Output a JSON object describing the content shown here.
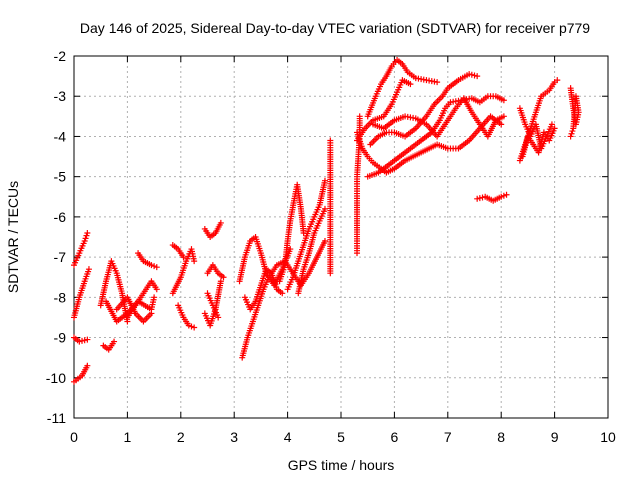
{
  "chart_data": {
    "type": "scatter",
    "title": "Day 146 of 2025, Sidereal Day-to-day VTEC variation (SDTVAR) for receiver p779",
    "xlabel": "GPS time / hours",
    "ylabel": "SDTVAR / TECUs",
    "xlim": [
      0,
      10
    ],
    "ylim": [
      -11,
      -2
    ],
    "xticks": [
      "0",
      "1",
      "2",
      "3",
      "4",
      "5",
      "6",
      "7",
      "8",
      "9",
      "10"
    ],
    "yticks": [
      "-11",
      "-10",
      "-9",
      "-8",
      "-7",
      "-6",
      "-5",
      "-4",
      "-3",
      "-2"
    ],
    "grid": true,
    "marker": "plus",
    "color": "#ff0000",
    "tracks": [
      [
        [
          0.0,
          -7.2
        ],
        [
          0.1,
          -6.9
        ],
        [
          0.2,
          -6.6
        ],
        [
          0.25,
          -6.4
        ]
      ],
      [
        [
          0.0,
          -8.5
        ],
        [
          0.1,
          -8.0
        ],
        [
          0.2,
          -7.6
        ],
        [
          0.28,
          -7.3
        ]
      ],
      [
        [
          0.0,
          -10.1
        ],
        [
          0.15,
          -9.95
        ],
        [
          0.25,
          -9.7
        ]
      ],
      [
        [
          0.0,
          -9.0
        ],
        [
          0.1,
          -9.1
        ],
        [
          0.25,
          -9.05
        ]
      ],
      [
        [
          0.5,
          -8.2
        ],
        [
          0.6,
          -7.6
        ],
        [
          0.7,
          -7.1
        ],
        [
          0.8,
          -7.4
        ],
        [
          0.9,
          -7.9
        ],
        [
          1.0,
          -8.6
        ]
      ],
      [
        [
          0.55,
          -9.2
        ],
        [
          0.65,
          -9.3
        ],
        [
          0.75,
          -9.1
        ]
      ],
      [
        [
          0.6,
          -8.1
        ],
        [
          0.8,
          -8.6
        ],
        [
          1.0,
          -8.4
        ],
        [
          1.2,
          -8.1
        ],
        [
          1.45,
          -8.3
        ],
        [
          1.5,
          -8.0
        ]
      ],
      [
        [
          0.8,
          -8.3
        ],
        [
          1.0,
          -8.0
        ],
        [
          1.15,
          -8.4
        ],
        [
          1.3,
          -8.6
        ],
        [
          1.45,
          -8.4
        ]
      ],
      [
        [
          1.0,
          -8.5
        ],
        [
          1.15,
          -8.2
        ],
        [
          1.3,
          -7.9
        ],
        [
          1.45,
          -7.6
        ],
        [
          1.55,
          -7.8
        ]
      ],
      [
        [
          1.2,
          -6.9
        ],
        [
          1.3,
          -7.1
        ],
        [
          1.45,
          -7.2
        ],
        [
          1.55,
          -7.25
        ]
      ],
      [
        [
          1.85,
          -6.7
        ],
        [
          1.95,
          -6.8
        ],
        [
          2.0,
          -6.9
        ],
        [
          2.05,
          -7.0
        ]
      ],
      [
        [
          1.85,
          -7.9
        ],
        [
          2.0,
          -7.5
        ],
        [
          2.1,
          -7.1
        ],
        [
          2.2,
          -6.8
        ],
        [
          2.25,
          -7.1
        ]
      ],
      [
        [
          1.95,
          -8.2
        ],
        [
          2.05,
          -8.5
        ],
        [
          2.15,
          -8.7
        ],
        [
          2.25,
          -8.75
        ]
      ],
      [
        [
          2.45,
          -6.3
        ],
        [
          2.55,
          -6.5
        ],
        [
          2.65,
          -6.4
        ],
        [
          2.75,
          -6.15
        ]
      ],
      [
        [
          2.5,
          -7.4
        ],
        [
          2.6,
          -7.2
        ],
        [
          2.7,
          -7.4
        ],
        [
          2.8,
          -7.5
        ]
      ],
      [
        [
          2.45,
          -8.4
        ],
        [
          2.55,
          -8.7
        ],
        [
          2.65,
          -8.3
        ],
        [
          2.75,
          -7.6
        ]
      ],
      [
        [
          2.5,
          -7.9
        ],
        [
          2.6,
          -8.2
        ],
        [
          2.7,
          -8.5
        ]
      ],
      [
        [
          3.1,
          -7.6
        ],
        [
          3.2,
          -7.0
        ],
        [
          3.3,
          -6.6
        ],
        [
          3.4,
          -6.5
        ],
        [
          3.5,
          -6.9
        ],
        [
          3.6,
          -7.4
        ],
        [
          3.75,
          -7.7
        ],
        [
          3.9,
          -7.3
        ],
        [
          4.05,
          -6.8
        ]
      ],
      [
        [
          3.15,
          -9.5
        ],
        [
          3.25,
          -9.0
        ],
        [
          3.35,
          -8.6
        ],
        [
          3.45,
          -8.2
        ],
        [
          3.55,
          -7.8
        ],
        [
          3.65,
          -7.5
        ],
        [
          3.8,
          -7.2
        ],
        [
          3.95,
          -7.1
        ],
        [
          4.1,
          -7.4
        ],
        [
          4.25,
          -7.7
        ],
        [
          4.4,
          -7.4
        ],
        [
          4.55,
          -7.0
        ],
        [
          4.7,
          -6.6
        ]
      ],
      [
        [
          3.2,
          -8.0
        ],
        [
          3.3,
          -8.3
        ],
        [
          3.4,
          -8.1
        ],
        [
          3.5,
          -7.7
        ],
        [
          3.6,
          -7.3
        ],
        [
          3.7,
          -7.4
        ],
        [
          3.8,
          -7.8
        ],
        [
          3.9,
          -7.9
        ]
      ],
      [
        [
          3.85,
          -7.6
        ],
        [
          3.95,
          -7.2
        ],
        [
          4.0,
          -6.6
        ],
        [
          4.05,
          -6.1
        ],
        [
          4.12,
          -5.6
        ],
        [
          4.18,
          -5.2
        ],
        [
          4.25,
          -5.8
        ],
        [
          4.3,
          -6.4
        ]
      ],
      [
        [
          4.0,
          -7.8
        ],
        [
          4.1,
          -7.5
        ],
        [
          4.2,
          -7.1
        ],
        [
          4.3,
          -6.7
        ],
        [
          4.4,
          -6.3
        ],
        [
          4.5,
          -6.0
        ],
        [
          4.6,
          -5.7
        ],
        [
          4.7,
          -5.1
        ]
      ],
      [
        [
          4.2,
          -7.9
        ],
        [
          4.3,
          -7.3
        ],
        [
          4.4,
          -6.9
        ],
        [
          4.5,
          -6.4
        ],
        [
          4.6,
          -6.1
        ],
        [
          4.7,
          -5.8
        ]
      ],
      [
        [
          4.8,
          -4.1
        ],
        [
          4.8,
          -4.4
        ],
        [
          4.8,
          -5.4
        ],
        [
          4.8,
          -5.9
        ],
        [
          4.8,
          -7.4
        ]
      ],
      [
        [
          5.3,
          -6.9
        ],
        [
          5.3,
          -6.6
        ],
        [
          5.3,
          -5.6
        ],
        [
          5.3,
          -5.0
        ],
        [
          5.35,
          -4.0
        ],
        [
          5.35,
          -3.5
        ]
      ],
      [
        [
          5.3,
          -4.1
        ],
        [
          5.45,
          -3.8
        ],
        [
          5.6,
          -3.6
        ],
        [
          5.8,
          -3.5
        ],
        [
          5.95,
          -3.2
        ],
        [
          6.05,
          -2.9
        ],
        [
          6.15,
          -2.6
        ],
        [
          6.3,
          -2.7
        ]
      ],
      [
        [
          5.3,
          -3.9
        ],
        [
          5.4,
          -4.3
        ],
        [
          5.5,
          -4.5
        ],
        [
          5.6,
          -4.65
        ],
        [
          5.75,
          -4.8
        ],
        [
          5.85,
          -4.9
        ],
        [
          6.0,
          -4.8
        ],
        [
          6.2,
          -4.6
        ],
        [
          6.5,
          -4.4
        ],
        [
          6.8,
          -4.2
        ],
        [
          7.0,
          -4.3
        ],
        [
          7.2,
          -4.3
        ],
        [
          7.4,
          -4.1
        ],
        [
          7.6,
          -3.8
        ],
        [
          7.8,
          -3.5
        ],
        [
          8.0,
          -3.7
        ]
      ],
      [
        [
          5.5,
          -3.5
        ],
        [
          5.65,
          -3.0
        ],
        [
          5.75,
          -2.7
        ],
        [
          5.85,
          -2.5
        ],
        [
          5.95,
          -2.25
        ],
        [
          6.05,
          -2.1
        ],
        [
          6.15,
          -2.2
        ],
        [
          6.25,
          -2.4
        ],
        [
          6.4,
          -2.55
        ],
        [
          6.6,
          -2.6
        ],
        [
          6.8,
          -2.65
        ]
      ],
      [
        [
          5.55,
          -4.2
        ],
        [
          5.7,
          -4.0
        ],
        [
          5.85,
          -3.9
        ],
        [
          6.0,
          -3.9
        ],
        [
          6.2,
          -4.0
        ],
        [
          6.4,
          -3.8
        ],
        [
          6.6,
          -3.5
        ],
        [
          6.75,
          -3.2
        ],
        [
          6.9,
          -3.0
        ],
        [
          7.0,
          -2.8
        ],
        [
          7.2,
          -2.6
        ],
        [
          7.4,
          -2.45
        ],
        [
          7.55,
          -2.5
        ]
      ],
      [
        [
          5.5,
          -5.0
        ],
        [
          5.7,
          -4.9
        ],
        [
          5.9,
          -4.7
        ],
        [
          6.1,
          -4.5
        ],
        [
          6.3,
          -4.3
        ],
        [
          6.5,
          -4.1
        ],
        [
          6.7,
          -3.9
        ],
        [
          6.85,
          -3.6
        ],
        [
          6.95,
          -3.3
        ],
        [
          7.05,
          -3.15
        ],
        [
          7.25,
          -3.1
        ],
        [
          7.45,
          -3.05
        ],
        [
          7.6,
          -3.15
        ],
        [
          7.75,
          -3.0
        ],
        [
          7.9,
          -3.0
        ],
        [
          8.05,
          -3.1
        ]
      ],
      [
        [
          5.6,
          -3.7
        ],
        [
          5.8,
          -3.8
        ],
        [
          6.0,
          -3.6
        ],
        [
          6.2,
          -3.5
        ],
        [
          6.4,
          -3.55
        ],
        [
          6.6,
          -3.7
        ],
        [
          6.8,
          -4.0
        ],
        [
          7.0,
          -3.6
        ],
        [
          7.15,
          -3.3
        ],
        [
          7.3,
          -3.05
        ],
        [
          7.45,
          -3.4
        ],
        [
          7.6,
          -3.7
        ],
        [
          7.75,
          -4.0
        ],
        [
          7.9,
          -3.6
        ],
        [
          8.05,
          -3.5
        ]
      ],
      [
        [
          7.55,
          -5.55
        ],
        [
          7.7,
          -5.5
        ],
        [
          7.85,
          -5.6
        ],
        [
          8.0,
          -5.5
        ],
        [
          8.1,
          -5.45
        ]
      ],
      [
        [
          8.35,
          -4.6
        ],
        [
          8.45,
          -4.2
        ],
        [
          8.55,
          -3.8
        ],
        [
          8.65,
          -3.4
        ],
        [
          8.75,
          -3.0
        ],
        [
          8.9,
          -2.85
        ],
        [
          9.0,
          -2.65
        ],
        [
          9.05,
          -2.6
        ]
      ],
      [
        [
          8.35,
          -3.3
        ],
        [
          8.45,
          -3.7
        ],
        [
          8.55,
          -4.0
        ],
        [
          8.65,
          -3.7
        ],
        [
          8.75,
          -4.3
        ],
        [
          8.85,
          -4.0
        ],
        [
          8.95,
          -3.7
        ]
      ],
      [
        [
          8.4,
          -4.5
        ],
        [
          8.5,
          -4.0
        ],
        [
          8.6,
          -4.2
        ],
        [
          8.7,
          -4.4
        ],
        [
          8.8,
          -3.9
        ],
        [
          8.9,
          -4.1
        ],
        [
          9.0,
          -3.8
        ]
      ],
      [
        [
          9.3,
          -2.8
        ],
        [
          9.35,
          -3.3
        ],
        [
          9.4,
          -3.7
        ],
        [
          9.45,
          -3.4
        ],
        [
          9.4,
          -3.0
        ],
        [
          9.35,
          -3.8
        ],
        [
          9.3,
          -4.0
        ]
      ]
    ]
  }
}
